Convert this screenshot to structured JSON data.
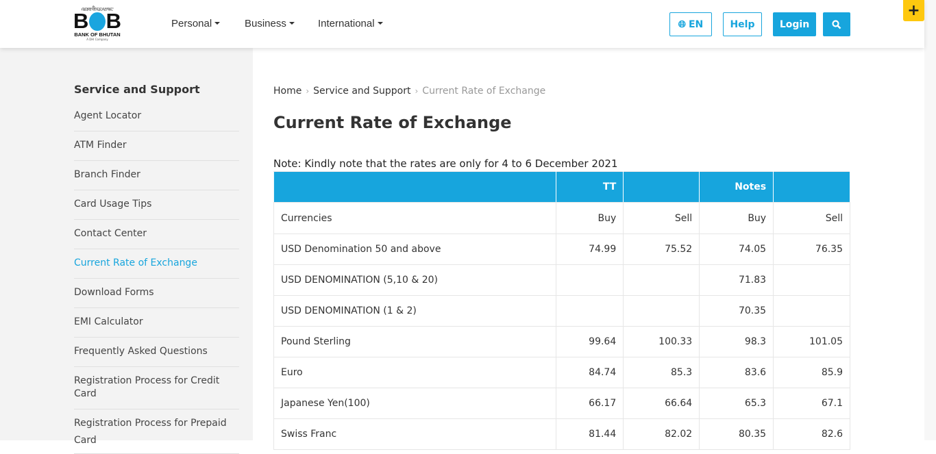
{
  "header": {
    "logo": {
      "tibetan": "འབྲུག་གི་དངུལ་ཁང་",
      "letters": "BOB",
      "name": "BANK OF BHUTAN",
      "tagline": "A DHI Company"
    },
    "nav": [
      "Personal",
      "Business",
      "International"
    ],
    "lang_label": "EN",
    "help_label": "Help",
    "login_label": "Login",
    "plus_label": "+"
  },
  "sidebar": {
    "title": "Service and Support",
    "items": [
      "Agent Locator",
      "ATM Finder",
      "Branch Finder",
      "Card Usage Tips",
      "Contact Center",
      "Current Rate of Exchange",
      "Download Forms",
      "EMI Calculator",
      "Frequently Asked Questions",
      "Registration Process for Credit Card",
      "Registration Process for Prepaid Card"
    ],
    "active": "Current Rate of Exchange"
  },
  "breadcrumb": [
    "Home",
    "Service and Support",
    "Current Rate of Exchange"
  ],
  "page_title": "Current Rate of Exchange",
  "note": "Note: Kindly note that the rates are only for 4 to 6 December 2021",
  "table": {
    "group_headers": [
      "",
      "TT",
      "",
      "Notes",
      ""
    ],
    "sub_headers": [
      "Currencies",
      "Buy",
      "Sell",
      "Buy",
      "Sell"
    ],
    "rows": [
      [
        "USD Denomination 50 and above",
        "74.99",
        "75.52",
        "74.05",
        "76.35"
      ],
      [
        "USD DENOMINATION (5,10 & 20)",
        "",
        "",
        "71.83",
        ""
      ],
      [
        "USD DENOMINATION (1 & 2)",
        "",
        "",
        "70.35",
        ""
      ],
      [
        "Pound Sterling",
        "99.64",
        "100.33",
        "98.3",
        "101.05"
      ],
      [
        "Euro",
        "84.74",
        "85.3",
        "83.6",
        "85.9"
      ],
      [
        "Japanese Yen(100)",
        "66.17",
        "66.64",
        "65.3",
        "67.1"
      ],
      [
        "Swiss Franc",
        "81.44",
        "82.02",
        "80.35",
        "82.6"
      ]
    ]
  },
  "colors": {
    "accent": "#17a5dd",
    "plus": "#fec80f",
    "sidebar_bg": "#f3f3f3"
  }
}
